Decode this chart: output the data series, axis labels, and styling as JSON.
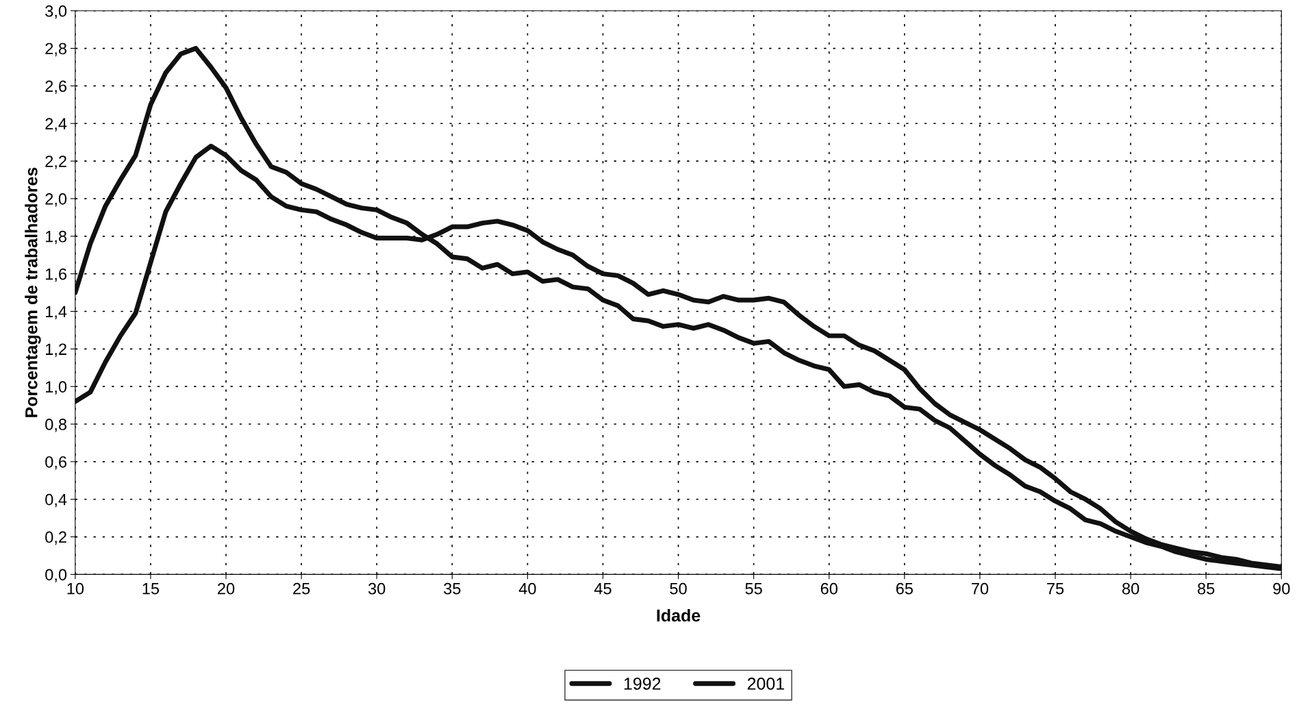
{
  "chart_data": {
    "type": "line",
    "xlabel": "Idade",
    "ylabel": "Porcentagem de trabalhadores",
    "x": [
      10,
      11,
      12,
      13,
      14,
      15,
      16,
      17,
      18,
      19,
      20,
      21,
      22,
      23,
      24,
      25,
      26,
      27,
      28,
      29,
      30,
      31,
      32,
      33,
      34,
      35,
      36,
      37,
      38,
      39,
      40,
      41,
      42,
      43,
      44,
      45,
      46,
      47,
      48,
      49,
      50,
      51,
      52,
      53,
      54,
      55,
      56,
      57,
      58,
      59,
      60,
      61,
      62,
      63,
      64,
      65,
      66,
      67,
      68,
      69,
      70,
      71,
      72,
      73,
      74,
      75,
      76,
      77,
      78,
      79,
      80,
      81,
      82,
      83,
      84,
      85,
      86,
      87,
      88,
      89,
      90
    ],
    "series": [
      {
        "name": "1992",
        "color": "#111111",
        "values": [
          1.5,
          1.76,
          1.96,
          2.1,
          2.23,
          2.5,
          2.67,
          2.77,
          2.8,
          2.7,
          2.59,
          2.43,
          2.29,
          2.17,
          2.14,
          2.08,
          2.05,
          2.01,
          1.97,
          1.95,
          1.94,
          1.9,
          1.87,
          1.81,
          1.76,
          1.69,
          1.68,
          1.63,
          1.65,
          1.6,
          1.61,
          1.56,
          1.57,
          1.53,
          1.52,
          1.46,
          1.43,
          1.36,
          1.35,
          1.32,
          1.33,
          1.31,
          1.33,
          1.3,
          1.26,
          1.23,
          1.24,
          1.18,
          1.14,
          1.11,
          1.09,
          1.0,
          1.01,
          0.97,
          0.95,
          0.89,
          0.88,
          0.82,
          0.78,
          0.71,
          0.64,
          0.58,
          0.53,
          0.47,
          0.44,
          0.39,
          0.35,
          0.29,
          0.27,
          0.23,
          0.2,
          0.17,
          0.15,
          0.12,
          0.1,
          0.08,
          0.07,
          0.06,
          0.05,
          0.04,
          0.03
        ]
      },
      {
        "name": "2001",
        "color": "#111111",
        "values": [
          0.92,
          0.97,
          1.13,
          1.27,
          1.39,
          1.66,
          1.93,
          2.08,
          2.22,
          2.28,
          2.23,
          2.15,
          2.1,
          2.01,
          1.96,
          1.94,
          1.93,
          1.89,
          1.86,
          1.82,
          1.79,
          1.79,
          1.79,
          1.78,
          1.81,
          1.85,
          1.85,
          1.87,
          1.88,
          1.86,
          1.83,
          1.77,
          1.73,
          1.7,
          1.64,
          1.6,
          1.59,
          1.55,
          1.49,
          1.51,
          1.49,
          1.46,
          1.45,
          1.48,
          1.46,
          1.46,
          1.47,
          1.45,
          1.38,
          1.32,
          1.27,
          1.27,
          1.22,
          1.19,
          1.14,
          1.09,
          0.99,
          0.91,
          0.85,
          0.81,
          0.77,
          0.72,
          0.67,
          0.61,
          0.57,
          0.51,
          0.44,
          0.4,
          0.35,
          0.28,
          0.23,
          0.19,
          0.16,
          0.14,
          0.12,
          0.11,
          0.09,
          0.08,
          0.06,
          0.05,
          0.04
        ]
      }
    ],
    "xlim": [
      10,
      90
    ],
    "xticks": [
      10,
      15,
      20,
      25,
      30,
      35,
      40,
      45,
      50,
      55,
      60,
      65,
      70,
      75,
      80,
      85,
      90
    ],
    "ylim": [
      0,
      3.0
    ],
    "yticks": [
      {
        "value": 0,
        "label": "0,0"
      },
      {
        "value": 0.2,
        "label": "0,2"
      },
      {
        "value": 0.4,
        "label": "0,4"
      },
      {
        "value": 0.6,
        "label": "0,6"
      },
      {
        "value": 0.8,
        "label": "0,8"
      },
      {
        "value": 1.0,
        "label": "1,0"
      },
      {
        "value": 1.2,
        "label": "1,2"
      },
      {
        "value": 1.4,
        "label": "1,4"
      },
      {
        "value": 1.6,
        "label": "1,6"
      },
      {
        "value": 1.8,
        "label": "1,8"
      },
      {
        "value": 2.0,
        "label": "2,0"
      },
      {
        "value": 2.2,
        "label": "2,2"
      },
      {
        "value": 2.4,
        "label": "2,4"
      },
      {
        "value": 2.6,
        "label": "2,6"
      },
      {
        "value": 2.8,
        "label": "2,8"
      },
      {
        "value": 3.0,
        "label": "3,0"
      }
    ],
    "grid": true,
    "legend": "bottom",
    "line_style": "solid",
    "marker": "none"
  }
}
